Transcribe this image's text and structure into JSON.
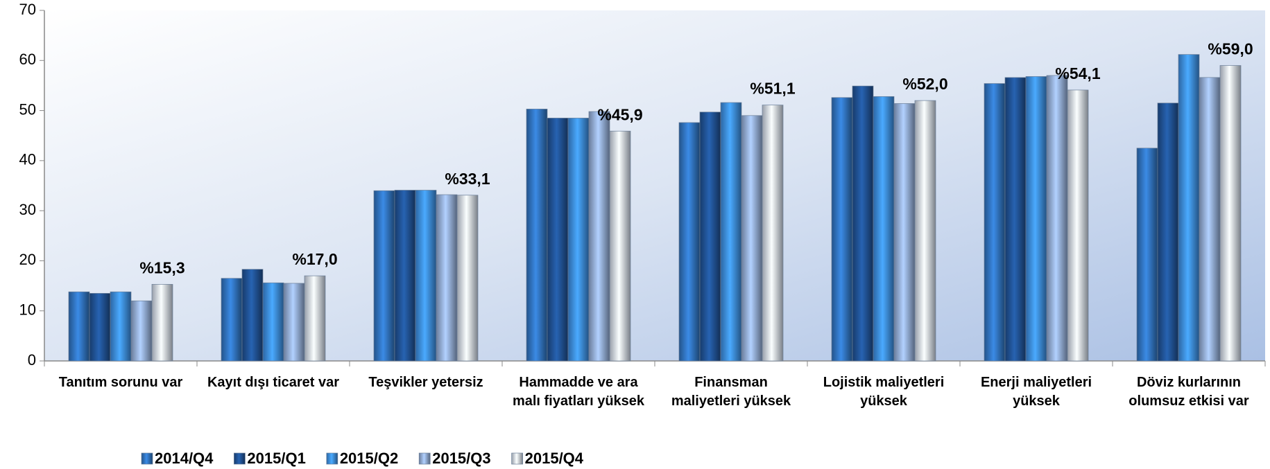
{
  "chart_data": {
    "type": "bar",
    "categories": [
      "Tanıtım sorunu var",
      "Kayıt dışı ticaret var",
      "Teşvikler yetersiz",
      "Hammadde ve ara malı fiyatları yüksek",
      "Finansman maliyetleri yüksek",
      "Lojistik maliyetleri yüksek",
      "Enerji maliyetleri yüksek",
      "Döviz kurlarının olumsuz etkisi var"
    ],
    "series": [
      {
        "name": "2014/Q4",
        "color": "#2f6fb8",
        "values": [
          13.8,
          16.5,
          34.0,
          50.3,
          47.6,
          52.6,
          55.4,
          42.5
        ]
      },
      {
        "name": "2015/Q1",
        "color": "#1f4f8e",
        "values": [
          13.5,
          18.3,
          34.1,
          48.5,
          49.7,
          54.9,
          56.6,
          51.5
        ]
      },
      {
        "name": "2015/Q2",
        "color": "#3b88da",
        "values": [
          13.8,
          15.6,
          34.1,
          48.5,
          51.6,
          52.8,
          56.8,
          61.2
        ]
      },
      {
        "name": "2015/Q3",
        "color": "#8ea7cf",
        "values": [
          12.0,
          15.5,
          33.2,
          49.8,
          49.0,
          51.4,
          57.0,
          56.6
        ]
      },
      {
        "name": "2015/Q4",
        "color": "#c9d3e3",
        "values": [
          15.3,
          17.0,
          33.1,
          45.9,
          51.1,
          52.0,
          54.1,
          59.0
        ],
        "value_labels": [
          "%15,3",
          "%17,0",
          "%33,1",
          "%45,9",
          "%51,1",
          "%52,0",
          "%54,1",
          "%59,0"
        ]
      }
    ],
    "ylim": [
      0,
      70
    ],
    "yticks": [
      0,
      10,
      20,
      30,
      40,
      50,
      60,
      70
    ],
    "grid": false,
    "legend": "bottom"
  }
}
